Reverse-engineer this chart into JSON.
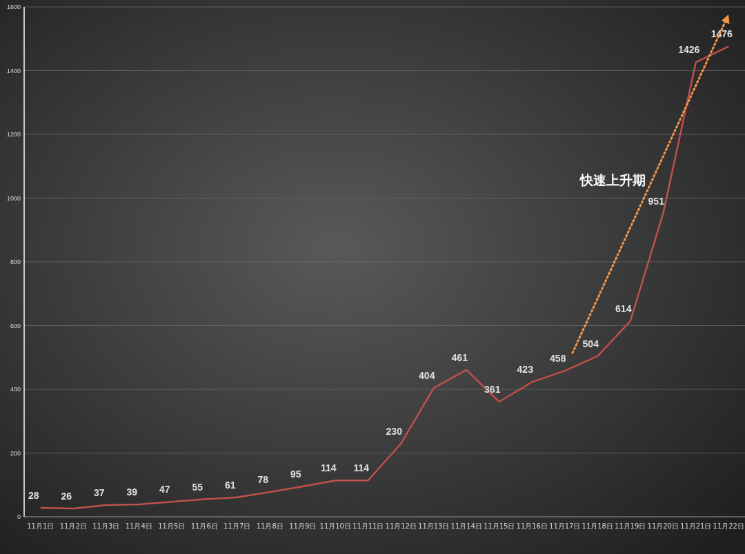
{
  "chart_data": {
    "type": "line",
    "categories": [
      "11月1日",
      "11月2日",
      "11月3日",
      "11月4日",
      "11月5日",
      "11月6日",
      "11月7日",
      "11月8日",
      "11月9日",
      "11月10日",
      "11月11日",
      "11月12日",
      "11月13日",
      "11月14日",
      "11月15日",
      "11月16日",
      "11月17日",
      "11月18日",
      "11月19日",
      "11月20日",
      "11月21日",
      "11月22日"
    ],
    "series": [
      {
        "color": "#c0504d",
        "values": [
          28,
          26,
          37,
          39,
          47,
          55,
          61,
          78,
          95,
          114,
          114,
          230,
          404,
          461,
          361,
          423,
          458,
          504,
          614,
          951,
          1426,
          1476
        ]
      }
    ],
    "data_labels": true,
    "ylim": [
      0,
      1600
    ],
    "yticks": [
      0,
      200,
      400,
      600,
      800,
      1000,
      1200,
      1400,
      1600
    ],
    "grid": "y",
    "annotations": [
      "快速上升期"
    ]
  }
}
